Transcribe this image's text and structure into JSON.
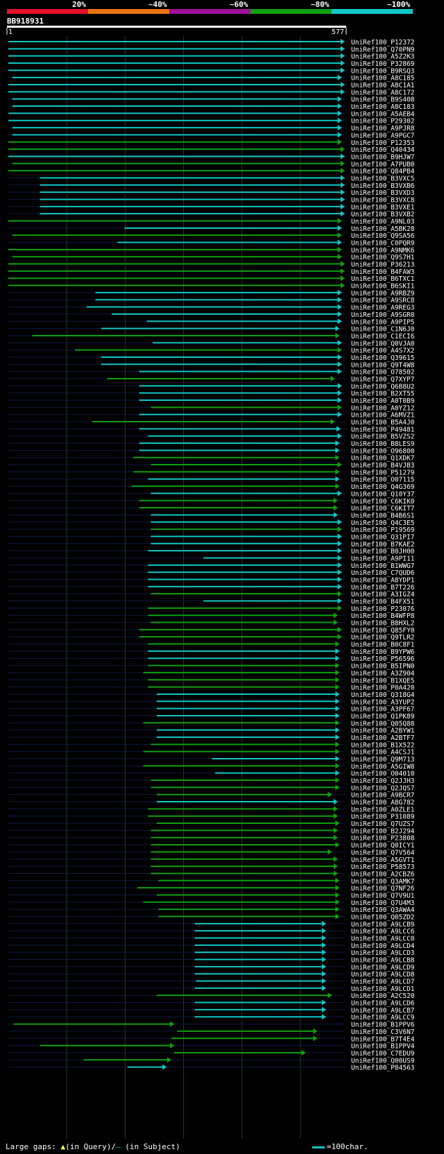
{
  "header": {
    "query_id": "BB918931",
    "bands": [
      {
        "label": "20%",
        "color": "#e8112d"
      },
      {
        "label": "~40%",
        "color": "#e87511"
      },
      {
        "label": "~60%",
        "color": "#a0109a"
      },
      {
        "label": "~80%",
        "color": "#10a010"
      },
      {
        "label": "~100%",
        "color": "#10c8c8"
      }
    ],
    "ruler_start": "1",
    "ruler_end": "577"
  },
  "footer": {
    "gaps_label": "Large gaps:",
    "gap_query_marker": "▲",
    "gap_query_text": "(in Query)/",
    "gap_subject_marker": "—",
    "gap_subject_text": " (in Subject)",
    "scale_text": "=100char."
  },
  "chart_data": {
    "type": "alignment",
    "title": "BB918931",
    "query_length": 577,
    "rows": [
      {
        "id": "UniRef100_P12372",
        "s": 1,
        "e": 577,
        "c": "#10c8c8"
      },
      {
        "id": "UniRef100_Q70PN9",
        "s": 1,
        "e": 577,
        "c": "#10c8c8"
      },
      {
        "id": "UniRef100_A5Z2K3",
        "s": 1,
        "e": 577,
        "c": "#10c8c8"
      },
      {
        "id": "UniRef100_P32869",
        "s": 1,
        "e": 577,
        "c": "#10c8c8"
      },
      {
        "id": "UniRef100_B9RSQ3",
        "s": 1,
        "e": 577,
        "c": "#10c8c8"
      },
      {
        "id": "UniRef100_A8C185",
        "s": 8,
        "e": 572,
        "c": "#10c8c8"
      },
      {
        "id": "UniRef100_A8C1A1",
        "s": 1,
        "e": 577,
        "c": "#10c8c8"
      },
      {
        "id": "UniRef100_A8C172",
        "s": 1,
        "e": 577,
        "c": "#10c8c8"
      },
      {
        "id": "UniRef100_B9S408",
        "s": 8,
        "e": 572,
        "c": "#10c8c8"
      },
      {
        "id": "UniRef100_A8C183",
        "s": 8,
        "e": 572,
        "c": "#10c8c8"
      },
      {
        "id": "UniRef100_A5AEB4",
        "s": 1,
        "e": 572,
        "c": "#10c8c8"
      },
      {
        "id": "UniRef100_P29302",
        "s": 1,
        "e": 572,
        "c": "#10c8c8"
      },
      {
        "id": "UniRef100_A9PJR8",
        "s": 8,
        "e": 572,
        "c": "#10c8c8"
      },
      {
        "id": "UniRef100_A9PGC7",
        "s": 8,
        "e": 572,
        "c": "#10c8c8"
      },
      {
        "id": "UniRef100_P12353",
        "s": 1,
        "e": 572,
        "c": "#10a010"
      },
      {
        "id": "UniRef100_Q40434",
        "s": 1,
        "e": 577,
        "c": "#10a010"
      },
      {
        "id": "UniRef100_B9HJW7",
        "s": 1,
        "e": 577,
        "c": "#10c8c8"
      },
      {
        "id": "UniRef100_A7PUB0",
        "s": 8,
        "e": 577,
        "c": "#10a010"
      },
      {
        "id": "UniRef100_Q84PB4",
        "s": 1,
        "e": 577,
        "c": "#10a010"
      },
      {
        "id": "UniRef100_B3VXC5",
        "s": 55,
        "e": 577,
        "c": "#10c8c8"
      },
      {
        "id": "UniRef100_B3VXB6",
        "s": 55,
        "e": 577,
        "c": "#10c8c8"
      },
      {
        "id": "UniRef100_B3VXD3",
        "s": 55,
        "e": 577,
        "c": "#10c8c8"
      },
      {
        "id": "UniRef100_B3VXC8",
        "s": 55,
        "e": 577,
        "c": "#10c8c8"
      },
      {
        "id": "UniRef100_B3VXE1",
        "s": 55,
        "e": 577,
        "c": "#10c8c8"
      },
      {
        "id": "UniRef100_B3VXB2",
        "s": 55,
        "e": 577,
        "c": "#10c8c8"
      },
      {
        "id": "UniRef100_A9NL03",
        "s": 1,
        "e": 572,
        "c": "#10a010"
      },
      {
        "id": "UniRef100_A5BK28",
        "s": 200,
        "e": 572,
        "c": "#10c8c8"
      },
      {
        "id": "UniRef100_Q9SA56",
        "s": 8,
        "e": 572,
        "c": "#10a010"
      },
      {
        "id": "UniRef100_C0PQR9",
        "s": 188,
        "e": 572,
        "c": "#10c8c8"
      },
      {
        "id": "UniRef100_A9NMK6",
        "s": 1,
        "e": 572,
        "c": "#10a010"
      },
      {
        "id": "UniRef100_Q9S7H1",
        "s": 8,
        "e": 572,
        "c": "#10a010"
      },
      {
        "id": "UniRef100_P36213",
        "s": 1,
        "e": 577,
        "c": "#10a010"
      },
      {
        "id": "UniRef100_B4FAW3",
        "s": 1,
        "e": 577,
        "c": "#10a010"
      },
      {
        "id": "UniRef100_B6TXC1",
        "s": 1,
        "e": 577,
        "c": "#10a010"
      },
      {
        "id": "UniRef100_B6SKI1",
        "s": 1,
        "e": 577,
        "c": "#10a010"
      },
      {
        "id": "UniRef100_A9RBZ9",
        "s": 150,
        "e": 572,
        "c": "#10c8c8"
      },
      {
        "id": "UniRef100_A9SRC8",
        "s": 150,
        "e": 572,
        "c": "#10c8c8"
      },
      {
        "id": "UniRef100_A9REG3",
        "s": 135,
        "e": 572,
        "c": "#10c8c8"
      },
      {
        "id": "UniRef100_A9SGR0",
        "s": 178,
        "e": 572,
        "c": "#10c8c8"
      },
      {
        "id": "UniRef100_A9PIP5",
        "s": 238,
        "e": 572,
        "c": "#10c8c8"
      },
      {
        "id": "UniRef100_C1N6J0",
        "s": 160,
        "e": 568,
        "c": "#10c8c8"
      },
      {
        "id": "UniRef100_C1ECI6",
        "s": 42,
        "e": 568,
        "c": "#10a010"
      },
      {
        "id": "UniRef100_Q0VJA0",
        "s": 248,
        "e": 572,
        "c": "#10c8c8"
      },
      {
        "id": "UniRef100_A4S7X2",
        "s": 115,
        "e": 572,
        "c": "#10a010"
      },
      {
        "id": "UniRef100_Q39615",
        "s": 160,
        "e": 572,
        "c": "#10c8c8"
      },
      {
        "id": "UniRef100_Q9T4W8",
        "s": 160,
        "e": 572,
        "c": "#10c8c8"
      },
      {
        "id": "UniRef100_O78502",
        "s": 225,
        "e": 572,
        "c": "#10c8c8"
      },
      {
        "id": "UniRef100_Q7XYP7",
        "s": 170,
        "e": 560,
        "c": "#10a010"
      },
      {
        "id": "UniRef100_Q6B8U2",
        "s": 225,
        "e": 572,
        "c": "#10c8c8"
      },
      {
        "id": "UniRef100_B2XT55",
        "s": 225,
        "e": 572,
        "c": "#10c8c8"
      },
      {
        "id": "UniRef100_A0T0B9",
        "s": 225,
        "e": 572,
        "c": "#10c8c8"
      },
      {
        "id": "UniRef100_A0YZ12",
        "s": 245,
        "e": 572,
        "c": "#10a010"
      },
      {
        "id": "UniRef100_A6MVZ1",
        "s": 225,
        "e": 572,
        "c": "#10c8c8"
      },
      {
        "id": "UniRef100_B5A4J0",
        "s": 145,
        "e": 560,
        "c": "#10a010"
      },
      {
        "id": "UniRef100_P49481",
        "s": 225,
        "e": 570,
        "c": "#10c8c8"
      },
      {
        "id": "UniRef100_B5VZS2",
        "s": 240,
        "e": 572,
        "c": "#10c8c8"
      },
      {
        "id": "UniRef100_B8LES9",
        "s": 225,
        "e": 568,
        "c": "#10c8c8"
      },
      {
        "id": "UniRef100_O96800",
        "s": 225,
        "e": 568,
        "c": "#10c8c8"
      },
      {
        "id": "UniRef100_Q1XDK7",
        "s": 215,
        "e": 568,
        "c": "#10a010"
      },
      {
        "id": "UniRef100_B4VJB3",
        "s": 245,
        "e": 572,
        "c": "#10a010"
      },
      {
        "id": "UniRef100_P51279",
        "s": 215,
        "e": 568,
        "c": "#10a010"
      },
      {
        "id": "UniRef100_O07115",
        "s": 240,
        "e": 568,
        "c": "#10c8c8"
      },
      {
        "id": "UniRef100_Q4G369",
        "s": 212,
        "e": 568,
        "c": "#10a010"
      },
      {
        "id": "UniRef100_Q10Y37",
        "s": 245,
        "e": 572,
        "c": "#10c8c8"
      },
      {
        "id": "UniRef100_C6KIK0",
        "s": 225,
        "e": 565,
        "c": "#10a010"
      },
      {
        "id": "UniRef100_C6KIT7",
        "s": 225,
        "e": 565,
        "c": "#10a010"
      },
      {
        "id": "UniRef100_B4B6S1",
        "s": 245,
        "e": 565,
        "c": "#10c8c8"
      },
      {
        "id": "UniRef100_Q4C3E5",
        "s": 245,
        "e": 572,
        "c": "#10c8c8"
      },
      {
        "id": "UniRef100_P19569",
        "s": 245,
        "e": 572,
        "c": "#10a010"
      },
      {
        "id": "UniRef100_Q31PI7",
        "s": 245,
        "e": 572,
        "c": "#10c8c8"
      },
      {
        "id": "UniRef100_B7KAE2",
        "s": 245,
        "e": 572,
        "c": "#10c8c8"
      },
      {
        "id": "UniRef100_B0JH00",
        "s": 240,
        "e": 572,
        "c": "#10c8c8"
      },
      {
        "id": "UniRef100_A9PI11",
        "s": 335,
        "e": 572,
        "c": "#10c8c8"
      },
      {
        "id": "UniRef100_B1WWG7",
        "s": 240,
        "e": 572,
        "c": "#10c8c8"
      },
      {
        "id": "UniRef100_C7QUD6",
        "s": 240,
        "e": 572,
        "c": "#10c8c8"
      },
      {
        "id": "UniRef100_A8YDP1",
        "s": 240,
        "e": 572,
        "c": "#10c8c8"
      },
      {
        "id": "UniRef100_B7T226",
        "s": 240,
        "e": 572,
        "c": "#10c8c8"
      },
      {
        "id": "UniRef100_A3IGZ4",
        "s": 245,
        "e": 572,
        "c": "#10a010"
      },
      {
        "id": "UniRef100_B4FX51",
        "s": 335,
        "e": 572,
        "c": "#10c8c8"
      },
      {
        "id": "UniRef100_P23076",
        "s": 240,
        "e": 572,
        "c": "#10a010"
      },
      {
        "id": "UniRef100_B4WFP8",
        "s": 240,
        "e": 565,
        "c": "#10a010"
      },
      {
        "id": "UniRef100_B8HXL2",
        "s": 245,
        "e": 565,
        "c": "#10a010"
      },
      {
        "id": "UniRef100_Q85FY0",
        "s": 225,
        "e": 572,
        "c": "#10a010"
      },
      {
        "id": "UniRef100_Q9TLR2",
        "s": 225,
        "e": 572,
        "c": "#10a010"
      },
      {
        "id": "UniRef100_B0C8F1",
        "s": 240,
        "e": 568,
        "c": "#10a010"
      },
      {
        "id": "UniRef100_B9YPW6",
        "s": 240,
        "e": 568,
        "c": "#10c8c8"
      },
      {
        "id": "UniRef100_P56596",
        "s": 240,
        "e": 568,
        "c": "#10c8c8"
      },
      {
        "id": "UniRef100_B5IPN0",
        "s": 240,
        "e": 568,
        "c": "#10a010"
      },
      {
        "id": "UniRef100_A3Z904",
        "s": 232,
        "e": 568,
        "c": "#10a010"
      },
      {
        "id": "UniRef100_B1XQE5",
        "s": 240,
        "e": 568,
        "c": "#10a010"
      },
      {
        "id": "UniRef100_P0A420",
        "s": 240,
        "e": 568,
        "c": "#10a010"
      },
      {
        "id": "UniRef100_Q318G4",
        "s": 255,
        "e": 568,
        "c": "#10c8c8"
      },
      {
        "id": "UniRef100_A3YUP2",
        "s": 255,
        "e": 568,
        "c": "#10c8c8"
      },
      {
        "id": "UniRef100_A3PF67",
        "s": 255,
        "e": 568,
        "c": "#10c8c8"
      },
      {
        "id": "UniRef100_Q1PK89",
        "s": 255,
        "e": 568,
        "c": "#10c8c8"
      },
      {
        "id": "UniRef100_Q05Q88",
        "s": 232,
        "e": 568,
        "c": "#10a010"
      },
      {
        "id": "UniRef100_A2BYW1",
        "s": 255,
        "e": 568,
        "c": "#10c8c8"
      },
      {
        "id": "UniRef100_A2BTF7",
        "s": 255,
        "e": 568,
        "c": "#10c8c8"
      },
      {
        "id": "UniRef100_B1X522",
        "s": 245,
        "e": 568,
        "c": "#10a010"
      },
      {
        "id": "UniRef100_A4CSJ1",
        "s": 232,
        "e": 568,
        "c": "#10a010"
      },
      {
        "id": "UniRef100_Q9M713",
        "s": 350,
        "e": 568,
        "c": "#10c8c8"
      },
      {
        "id": "UniRef100_A5GIW8",
        "s": 232,
        "e": 568,
        "c": "#10a010"
      },
      {
        "id": "UniRef100_O04010",
        "s": 355,
        "e": 568,
        "c": "#10c8c8"
      },
      {
        "id": "UniRef100_Q2JJH3",
        "s": 245,
        "e": 568,
        "c": "#10a010"
      },
      {
        "id": "UniRef100_Q2JQS7",
        "s": 245,
        "e": 568,
        "c": "#10a010"
      },
      {
        "id": "UniRef100_A9BCR7",
        "s": 255,
        "e": 555,
        "c": "#10a010"
      },
      {
        "id": "UniRef100_A8G782",
        "s": 255,
        "e": 565,
        "c": "#10c8c8"
      },
      {
        "id": "UniRef100_A0ZLE1",
        "s": 240,
        "e": 565,
        "c": "#10a010"
      },
      {
        "id": "UniRef100_P31089",
        "s": 240,
        "e": 565,
        "c": "#10a010"
      },
      {
        "id": "UniRef100_Q7UZS7",
        "s": 255,
        "e": 568,
        "c": "#10a010"
      },
      {
        "id": "UniRef100_B2J294",
        "s": 245,
        "e": 565,
        "c": "#10a010"
      },
      {
        "id": "UniRef100_P23808",
        "s": 245,
        "e": 565,
        "c": "#10a010"
      },
      {
        "id": "UniRef100_Q0ICY1",
        "s": 245,
        "e": 568,
        "c": "#10a010"
      },
      {
        "id": "UniRef100_Q7V564",
        "s": 245,
        "e": 555,
        "c": "#10a010"
      },
      {
        "id": "UniRef100_A5GVT1",
        "s": 245,
        "e": 565,
        "c": "#10a010"
      },
      {
        "id": "UniRef100_P58573",
        "s": 245,
        "e": 565,
        "c": "#10a010"
      },
      {
        "id": "UniRef100_A2CBZ6",
        "s": 245,
        "e": 565,
        "c": "#10a010"
      },
      {
        "id": "UniRef100_Q3AMK7",
        "s": 258,
        "e": 568,
        "c": "#10a010"
      },
      {
        "id": "UniRef100_Q7NF26",
        "s": 222,
        "e": 568,
        "c": "#10a010"
      },
      {
        "id": "UniRef100_Q7V9U1",
        "s": 255,
        "e": 568,
        "c": "#10a010"
      },
      {
        "id": "UniRef100_Q7U4M3",
        "s": 232,
        "e": 568,
        "c": "#10a010"
      },
      {
        "id": "UniRef100_Q3AWA4",
        "s": 258,
        "e": 568,
        "c": "#10a010"
      },
      {
        "id": "UniRef100_Q05ZD2",
        "s": 258,
        "e": 568,
        "c": "#10a010"
      },
      {
        "id": "UniRef100_A9LCB9",
        "s": 320,
        "e": 545,
        "c": "#10c8c8"
      },
      {
        "id": "UniRef100_A9LCC6",
        "s": 320,
        "e": 545,
        "c": "#10c8c8"
      },
      {
        "id": "UniRef100_A9LCC0",
        "s": 320,
        "e": 545,
        "c": "#10c8c8"
      },
      {
        "id": "UniRef100_A9LCD4",
        "s": 320,
        "e": 545,
        "c": "#10c8c8"
      },
      {
        "id": "UniRef100_A9LCD3",
        "s": 320,
        "e": 545,
        "c": "#10c8c8"
      },
      {
        "id": "UniRef100_A9LCB8",
        "s": 320,
        "e": 545,
        "c": "#10c8c8"
      },
      {
        "id": "UniRef100_A9LCD9",
        "s": 320,
        "e": 545,
        "c": "#10c8c8"
      },
      {
        "id": "UniRef100_A9LCD8",
        "s": 320,
        "e": 545,
        "c": "#10c8c8"
      },
      {
        "id": "UniRef100_A9LCD7",
        "s": 322,
        "e": 545,
        "c": "#10c8c8"
      },
      {
        "id": "UniRef100_A9LCD1",
        "s": 320,
        "e": 545,
        "c": "#10c8c8"
      },
      {
        "id": "UniRef100_A2C520",
        "s": 255,
        "e": 555,
        "c": "#10a010"
      },
      {
        "id": "UniRef100_A9LCD6",
        "s": 320,
        "e": 545,
        "c": "#10c8c8"
      },
      {
        "id": "UniRef100_A9LCB7",
        "s": 320,
        "e": 545,
        "c": "#10c8c8"
      },
      {
        "id": "UniRef100_A9LCC9",
        "s": 320,
        "e": 545,
        "c": "#10c8c8"
      },
      {
        "id": "UniRef100_B1PPV6",
        "s": 10,
        "e": 285,
        "c": "#10a010"
      },
      {
        "id": "UniRef100_C3V6N7",
        "s": 290,
        "e": 530,
        "c": "#10a010"
      },
      {
        "id": "UniRef100_B7T4E4",
        "s": 280,
        "e": 530,
        "c": "#10a010"
      },
      {
        "id": "UniRef100_B1PPV4",
        "s": 55,
        "e": 285,
        "c": "#10a010"
      },
      {
        "id": "UniRef100_C7EDU9",
        "s": 285,
        "e": 510,
        "c": "#10a010"
      },
      {
        "id": "UniRef100_Q00US9",
        "s": 130,
        "e": 280,
        "c": "#10a010"
      },
      {
        "id": "UniRef100_P84563",
        "s": 205,
        "e": 272,
        "c": "#10c8c8"
      }
    ]
  }
}
